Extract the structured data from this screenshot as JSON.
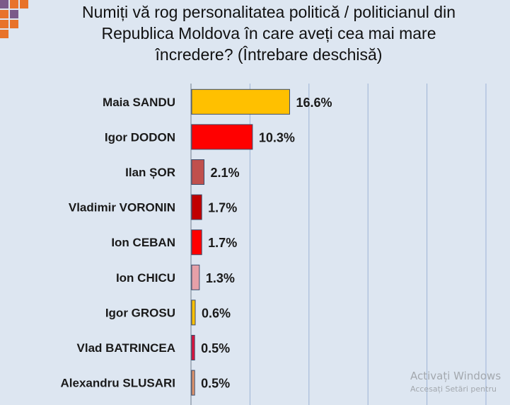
{
  "title": {
    "lines": [
      "Numiți vă rog personalitatea politică / politicianul din",
      "Republica Moldova în care aveți cea mai mare",
      "încredere? (Întrebare deschisă)"
    ]
  },
  "chart_data": {
    "type": "bar",
    "orientation": "horizontal",
    "categories": [
      "Maia SANDU",
      "Igor DODON",
      "Ilan ȘOR",
      "Vladimir VORONIN",
      "Ion CEBAN",
      "Ion CHICU",
      "Igor GROSU",
      "Vlad BATRINCEA",
      "Alexandru SLUSARI"
    ],
    "values": [
      16.6,
      10.3,
      2.1,
      1.7,
      1.7,
      1.3,
      0.6,
      0.5,
      0.5
    ],
    "value_labels": [
      "16.6%",
      "10.3%",
      "2.1%",
      "1.7%",
      "1.7%",
      "1.3%",
      "0.6%",
      "0.5%",
      "0.5%"
    ],
    "bar_colors": [
      "#ffc000",
      "#ff0000",
      "#c0504d",
      "#c00000",
      "#ff0000",
      "#e6a0a8",
      "#ffc000",
      "#e0103a",
      "#e0946b"
    ],
    "xlim": [
      0,
      50
    ],
    "gridlines_at": [
      10,
      20,
      30,
      40,
      50
    ],
    "grid": true,
    "legend": "none"
  },
  "watermark": {
    "line1": "Activați Windows",
    "line2": "Accesați Setări pentru"
  },
  "colors": {
    "background": "#dde6f1",
    "gridline": "#9db3d6",
    "logo_orange": "#e8732a",
    "logo_purple": "#7b5a8a"
  }
}
